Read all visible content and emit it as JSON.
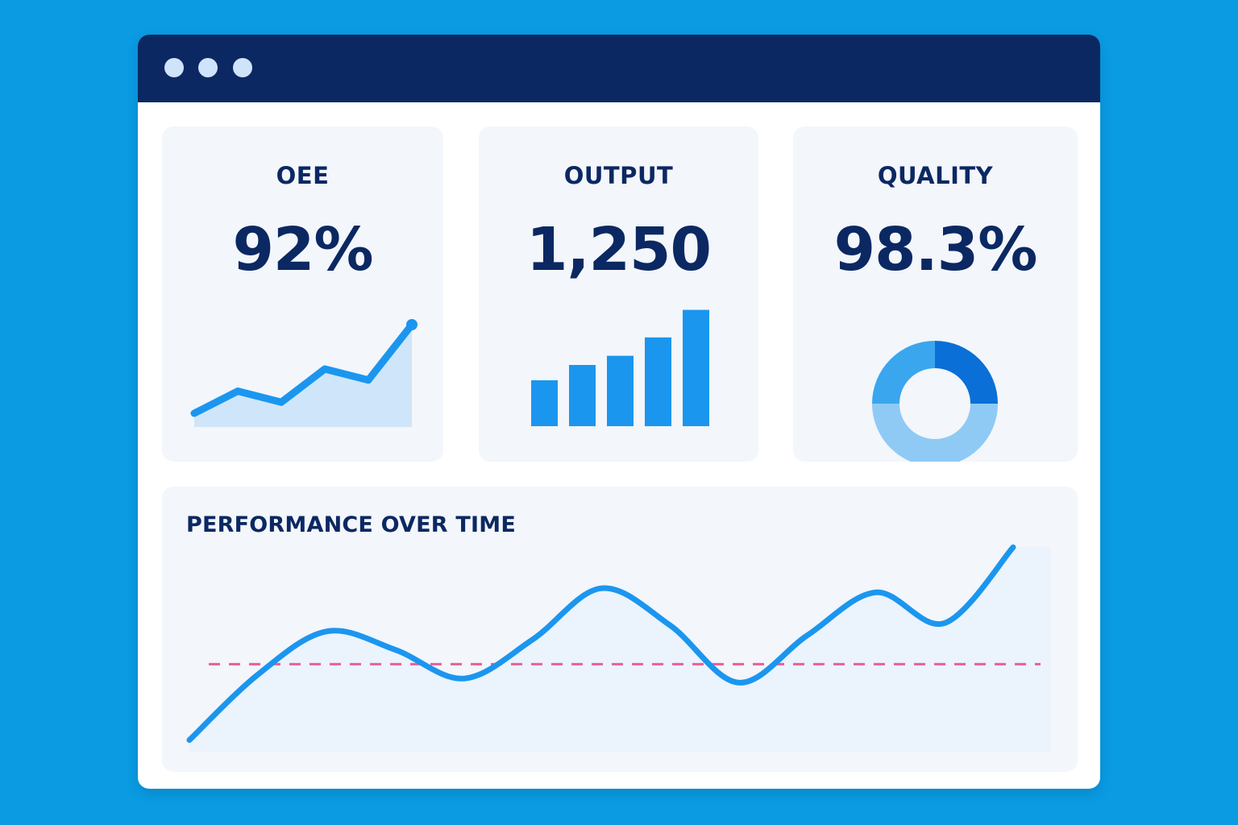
{
  "window": {
    "controls": [
      "window-dot",
      "window-dot",
      "window-dot"
    ]
  },
  "cards": {
    "oee": {
      "label": "OEE",
      "value": "92%",
      "sparkline": [
        1,
        3,
        2,
        5,
        4,
        9
      ]
    },
    "output": {
      "label": "OUTPUT",
      "value": "1,250",
      "bars": [
        3,
        4,
        4.6,
        5.8,
        7.6
      ]
    },
    "quality": {
      "label": "QUALITY",
      "value": "98.3%",
      "donut": [
        {
          "share": 0.25,
          "color": "#0a6fd6"
        },
        {
          "share": 0.5,
          "color": "#8fcaf5"
        },
        {
          "share": 0.25,
          "color": "#3aa6ee"
        }
      ]
    }
  },
  "performance": {
    "title": "PERFORMANCE OVER TIME",
    "chart_data": {
      "type": "line",
      "title": "PERFORMANCE OVER TIME",
      "x": [
        0,
        1,
        2,
        3,
        4,
        5,
        6,
        7,
        8,
        9,
        10,
        11,
        12
      ],
      "series": [
        {
          "values": [
            1.0,
            4.2,
            6.3,
            5.4,
            4.0,
            5.9,
            8.4,
            6.6,
            3.8,
            6.1,
            8.2,
            6.7,
            10.4
          ],
          "color": "#1b96ef"
        }
      ],
      "reference_line": 4.7,
      "reference_color": "#ee5d9a",
      "ylim": [
        0,
        11
      ],
      "grid": false
    }
  },
  "colors": {
    "background": "#0a9be3",
    "titlebar": "#0b2862",
    "accent": "#1b96ef",
    "text": "#0b2862"
  }
}
